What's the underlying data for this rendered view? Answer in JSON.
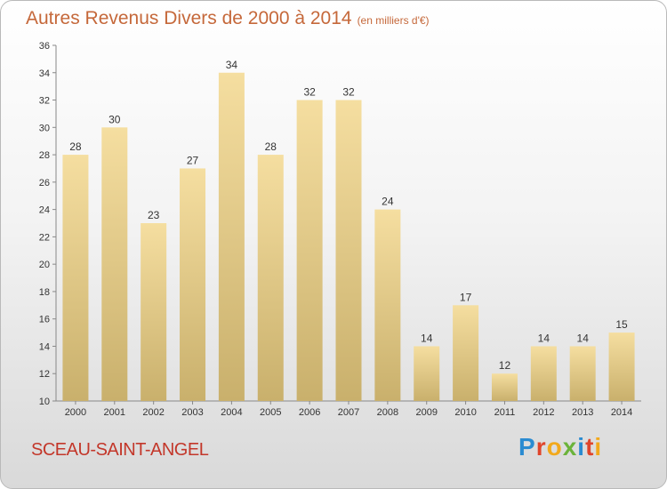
{
  "header": {
    "title": "Autres Revenus Divers de 2000 à 2014",
    "unit": "(en milliers d'€)"
  },
  "footer": {
    "place": "SCEAU-SAINT-ANGEL",
    "logo": "Proxiti"
  },
  "colors": {
    "title": "#c5683a",
    "place": "#c3372a",
    "bar_top": "#f5dea0",
    "bar_bottom": "#c9b06c"
  },
  "chart_data": {
    "type": "bar",
    "title": "Autres Revenus Divers de 2000 à 2014",
    "subtitle": "(en milliers d'€)",
    "categories": [
      "2000",
      "2001",
      "2002",
      "2003",
      "2004",
      "2005",
      "2006",
      "2007",
      "2008",
      "2009",
      "2010",
      "2011",
      "2012",
      "2013",
      "2014"
    ],
    "values": [
      28,
      30,
      23,
      27,
      34,
      28,
      32,
      32,
      24,
      14,
      17,
      12,
      14,
      14,
      15
    ],
    "ylim": [
      10,
      36
    ],
    "yticks": [
      10,
      12,
      14,
      16,
      18,
      20,
      22,
      24,
      26,
      28,
      30,
      32,
      34,
      36
    ],
    "grid": false,
    "data_labels": true
  }
}
